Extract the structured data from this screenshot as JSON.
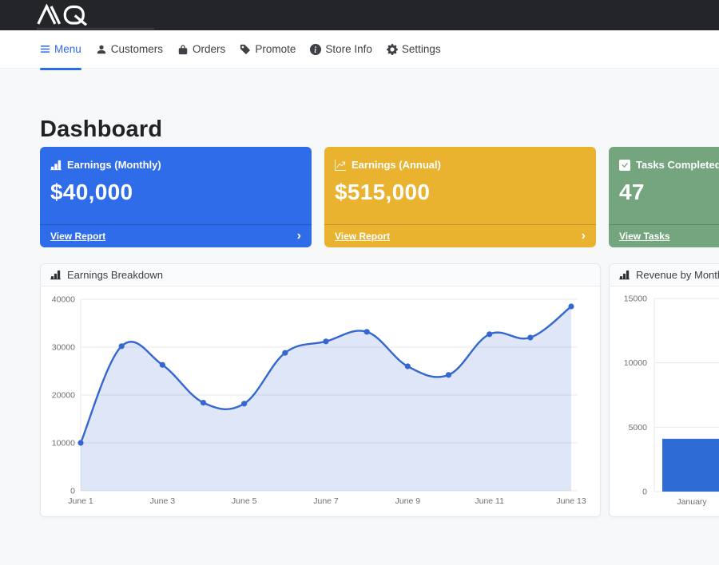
{
  "brand": {
    "name": "AQ"
  },
  "icons": {
    "chevron_right": "›"
  },
  "nav": {
    "active_color": "#2b6ce8",
    "items": [
      {
        "label": "Menu",
        "icon": "hamburger",
        "active": true
      },
      {
        "label": "Customers",
        "icon": "person",
        "active": false
      },
      {
        "label": "Orders",
        "icon": "bag",
        "active": false
      },
      {
        "label": "Promote",
        "icon": "tag",
        "active": false
      },
      {
        "label": "Store Info",
        "icon": "info-circle",
        "active": false
      },
      {
        "label": "Settings",
        "icon": "gear",
        "active": false
      }
    ]
  },
  "page": {
    "title": "Dashboard"
  },
  "stat_cards": [
    {
      "title": "Earnings (Monthly)",
      "value": "$40,000",
      "link_label": "View Report",
      "icon": "bar-chart",
      "color": "#2e6ce9"
    },
    {
      "title": "Earnings (Annual)",
      "value": "$515,000",
      "link_label": "View Report",
      "icon": "line-chart",
      "color": "#e9b330"
    },
    {
      "title": "Tasks Completed",
      "value": "47",
      "link_label": "View Tasks",
      "icon": "check-square",
      "color": "#74a57e"
    }
  ],
  "chart_data": [
    {
      "type": "area",
      "title": "Earnings Breakdown",
      "categories": [
        "June 1",
        "June 2",
        "June 3",
        "June 4",
        "June 5",
        "June 6",
        "June 7",
        "June 8",
        "June 9",
        "June 10",
        "June 11",
        "June 12",
        "June 13"
      ],
      "values": [
        10000,
        30200,
        26300,
        18400,
        18200,
        28800,
        31200,
        33200,
        26000,
        24200,
        32700,
        32000,
        38500
      ],
      "x_tick_labels": [
        "June 1",
        "June 3",
        "June 5",
        "June 7",
        "June 9",
        "June 11",
        "June 13"
      ],
      "yticks": [
        0,
        10000,
        20000,
        30000,
        40000
      ],
      "ylim": [
        0,
        40000
      ],
      "grid": true,
      "legend": false,
      "line_color": "#3567d1",
      "fill_color": "rgba(70,115,215,0.18)",
      "point_color": "#3567d1"
    },
    {
      "type": "bar",
      "title": "Revenue by Month",
      "categories": [
        "January"
      ],
      "values": [
        4100
      ],
      "yticks": [
        0,
        5000,
        10000,
        15000
      ],
      "ylim": [
        0,
        15000
      ],
      "grid": true,
      "legend": false,
      "bar_color": "#2f6bd5"
    }
  ]
}
